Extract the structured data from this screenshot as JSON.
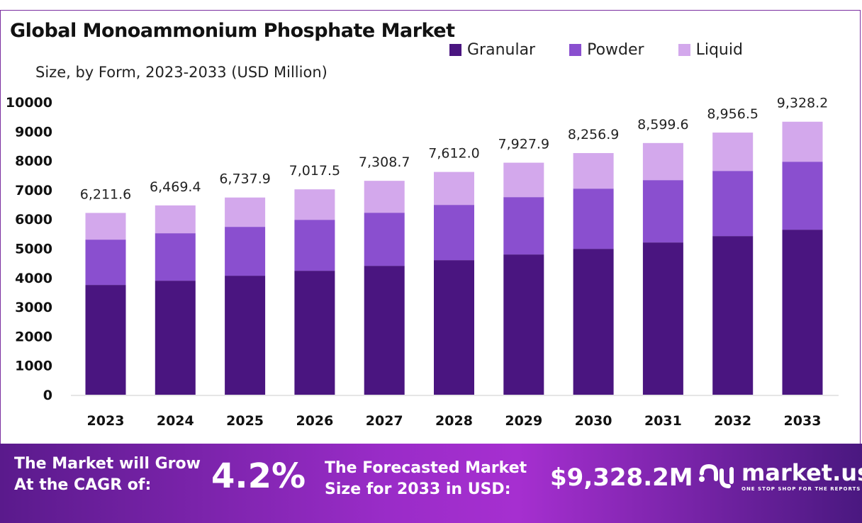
{
  "chart_data": {
    "type": "bar",
    "stacked": true,
    "title": "Global Monoammonium Phosphate Market",
    "subtitle": "Size, by Form, 2023-2033 (USD Million)",
    "xlabel": "",
    "ylabel": "",
    "ylim": [
      0,
      10000
    ],
    "yticks": [
      "0",
      "1000",
      "2000",
      "3000",
      "4000",
      "5000",
      "6000",
      "7000",
      "8000",
      "9000",
      "10000"
    ],
    "grid": false,
    "legend_position": "top-right",
    "categories": [
      "2023",
      "2024",
      "2025",
      "2026",
      "2027",
      "2028",
      "2029",
      "2030",
      "2031",
      "2032",
      "2033"
    ],
    "series": [
      {
        "name": "Granular",
        "color": "#4a1580",
        "values": [
          3751,
          3896,
          4066,
          4235,
          4404,
          4598,
          4792,
          4985,
          5203,
          5421,
          5639
        ]
      },
      {
        "name": "Powder",
        "color": "#8a4fcf",
        "values": [
          1549,
          1622,
          1670,
          1742,
          1815,
          1888,
          1960,
          2057,
          2130,
          2226,
          2323
        ]
      },
      {
        "name": "Liquid",
        "color": "#d3a8ec",
        "values": [
          912,
          951,
          1002,
          1041,
          1090,
          1126,
          1176,
          1215,
          1267,
          1310,
          1366
        ]
      }
    ],
    "totals": [
      6211.6,
      6469.4,
      6737.9,
      7017.5,
      7308.7,
      7612.0,
      7927.9,
      8256.9,
      8599.6,
      8956.5,
      9328.2
    ],
    "total_labels": [
      "6,211.6",
      "6,469.4",
      "6,737.9",
      "7,017.5",
      "7,308.7",
      "7,612.0",
      "7,927.9",
      "8,256.9",
      "8,599.6",
      "8,956.5",
      "9,328.2"
    ]
  },
  "footer": {
    "cagr_label_1": "The Market will Grow",
    "cagr_label_2": "At the CAGR of:",
    "cagr_value": "4.2%",
    "forecast_label_1": "The Forecasted Market",
    "forecast_label_2": "Size for 2033 in USD:",
    "forecast_value": "$9,328.2M",
    "brand": "market.us",
    "brand_tagline": "ONE STOP SHOP FOR THE REPORTS"
  }
}
